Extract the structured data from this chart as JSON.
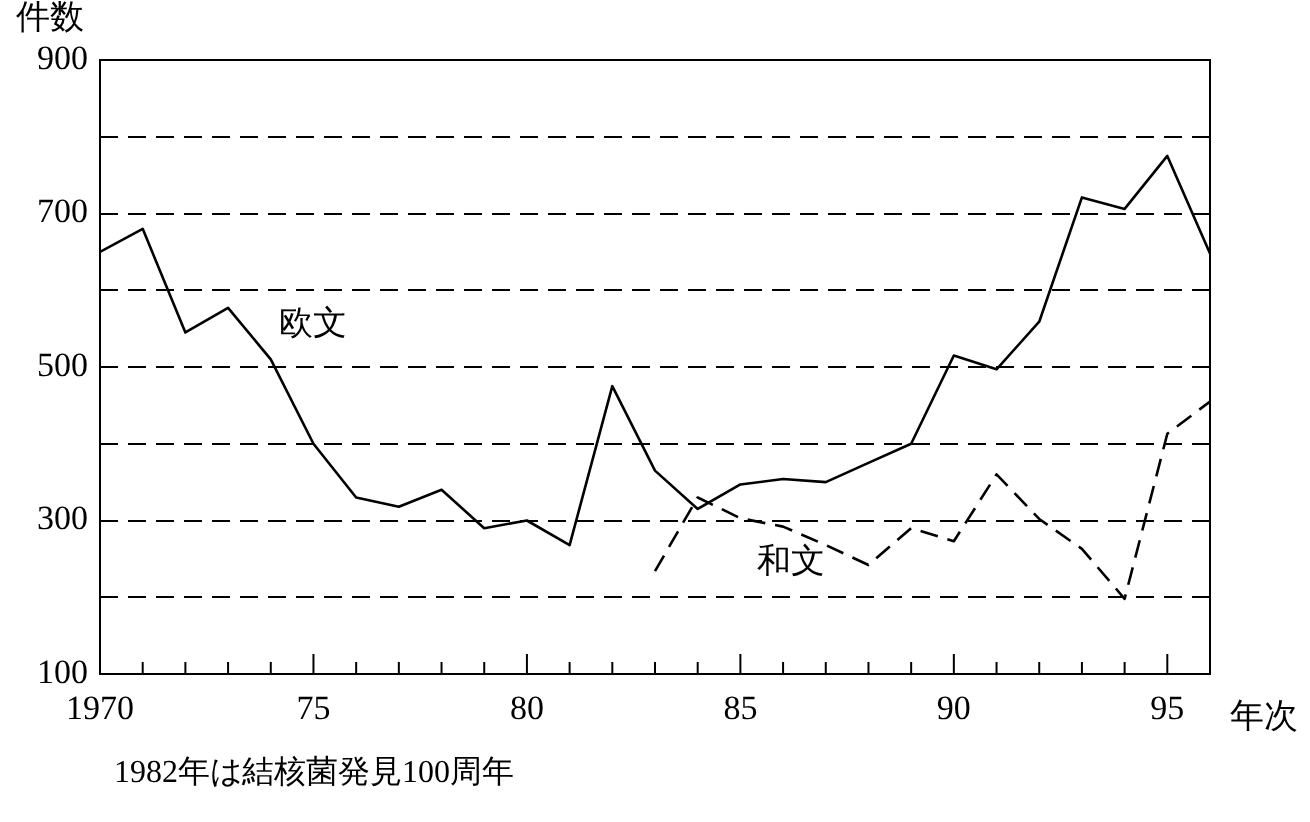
{
  "chart_data": {
    "type": "line",
    "xlabel": "年次",
    "ylabel": "件数",
    "annotations": [
      "1982年は結核菌発見100周年"
    ],
    "x": [
      1970,
      1971,
      1972,
      1973,
      1974,
      1975,
      1976,
      1977,
      1978,
      1979,
      1980,
      1981,
      1982,
      1983,
      1984,
      1985,
      1986,
      1987,
      1988,
      1989,
      1990,
      1991,
      1992,
      1993,
      1994,
      1995,
      1996
    ],
    "series": [
      {
        "name": "欧文",
        "color": "#000000",
        "line_style": "solid",
        "values": [
          650,
          680,
          545,
          577,
          510,
          400,
          330,
          318,
          340,
          290,
          300,
          268,
          475,
          365,
          315,
          347,
          354,
          350,
          375,
          400,
          515,
          497,
          559,
          721,
          706,
          775,
          648
        ]
      },
      {
        "name": "和文",
        "color": "#000000",
        "line_style": "dashed",
        "values": [
          null,
          null,
          null,
          null,
          null,
          null,
          null,
          null,
          null,
          null,
          null,
          null,
          null,
          234,
          330,
          303,
          292,
          268,
          242,
          290,
          273,
          360,
          302,
          263,
          198,
          413,
          455
        ]
      }
    ],
    "xlim": [
      1970,
      1996
    ],
    "xticks": [
      {
        "value": 1970,
        "label": "1970"
      },
      {
        "value": 1971,
        "label": null
      },
      {
        "value": 1972,
        "label": null
      },
      {
        "value": 1973,
        "label": null
      },
      {
        "value": 1974,
        "label": null
      },
      {
        "value": 1975,
        "label": "75"
      },
      {
        "value": 1976,
        "label": null
      },
      {
        "value": 1977,
        "label": null
      },
      {
        "value": 1978,
        "label": null
      },
      {
        "value": 1979,
        "label": null
      },
      {
        "value": 1980,
        "label": "80"
      },
      {
        "value": 1981,
        "label": null
      },
      {
        "value": 1982,
        "label": null
      },
      {
        "value": 1983,
        "label": null
      },
      {
        "value": 1984,
        "label": null
      },
      {
        "value": 1985,
        "label": "85"
      },
      {
        "value": 1986,
        "label": null
      },
      {
        "value": 1987,
        "label": null
      },
      {
        "value": 1988,
        "label": null
      },
      {
        "value": 1989,
        "label": null
      },
      {
        "value": 1990,
        "label": "90"
      },
      {
        "value": 1991,
        "label": null
      },
      {
        "value": 1992,
        "label": null
      },
      {
        "value": 1993,
        "label": null
      },
      {
        "value": 1994,
        "label": null
      },
      {
        "value": 1995,
        "label": "95"
      },
      {
        "value": 1996,
        "label": null
      }
    ],
    "ylim": [
      100,
      900
    ],
    "yticks": [
      100,
      {
        "value": 200,
        "label": null
      },
      300,
      {
        "value": 400,
        "label": null
      },
      500,
      {
        "value": 600,
        "label": null
      },
      700,
      {
        "value": 800,
        "label": null
      },
      900
    ],
    "grid": "y",
    "legend": false,
    "marker": "none"
  }
}
